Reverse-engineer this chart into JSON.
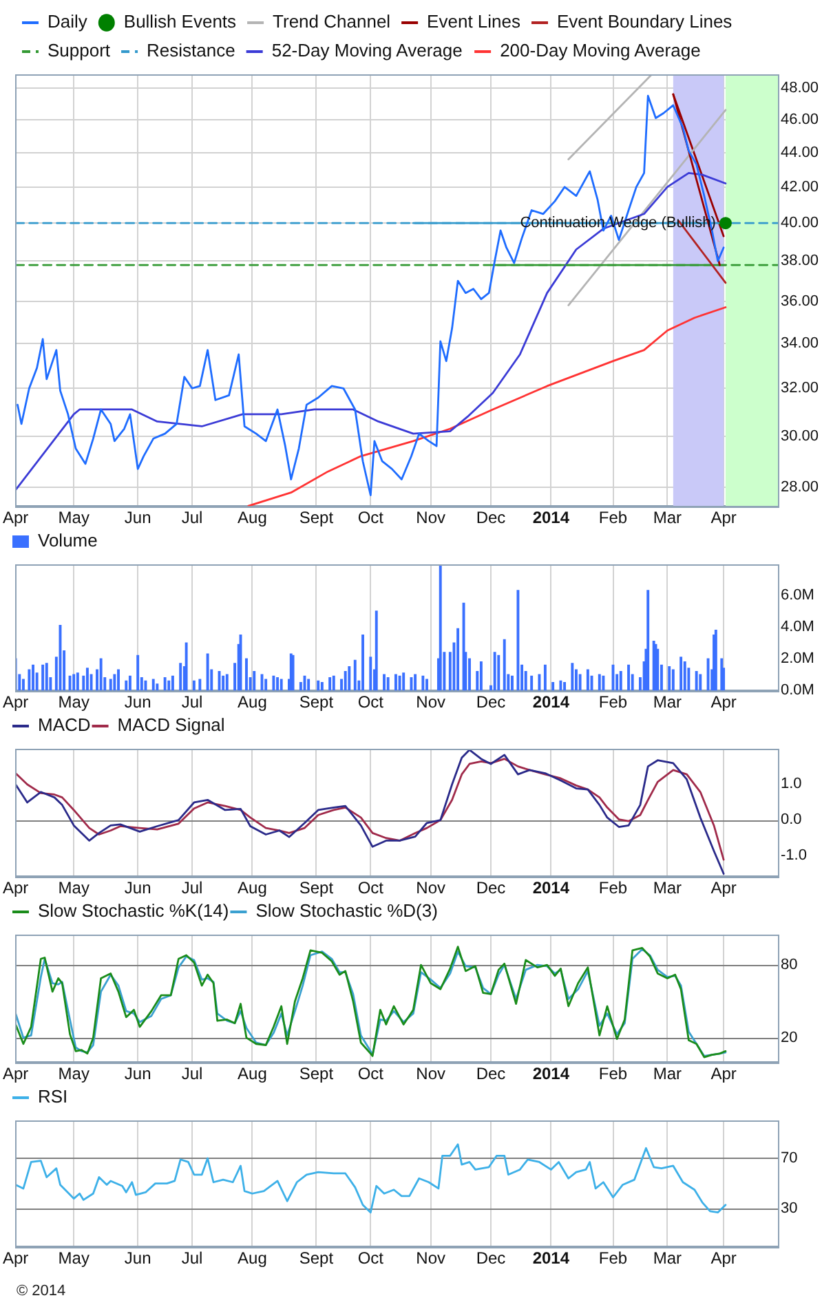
{
  "chart_data": [
    {
      "type": "line",
      "log": "y",
      "grid": true,
      "legend": "top left",
      "xlim": [
        "2013-04-01",
        "2014-04-29"
      ],
      "xticks": [
        {
          "value": "2013-04-01",
          "label": "Apr"
        },
        {
          "value": "2013-05-01",
          "label": "May"
        },
        {
          "value": "2013-06-03",
          "label": "Jun"
        },
        {
          "value": "2013-07-01",
          "label": "Jul"
        },
        {
          "value": "2013-08-01",
          "label": "Aug"
        },
        {
          "value": "2013-09-03",
          "label": "Sept"
        },
        {
          "value": "2013-10-01",
          "label": "Oct"
        },
        {
          "value": "2013-11-01",
          "label": "Nov"
        },
        {
          "value": "2013-12-02",
          "label": "Dec"
        },
        {
          "value": "2014-01-02",
          "label": "2014"
        },
        {
          "value": "2014-02-03",
          "label": "Feb"
        },
        {
          "value": "2014-03-03",
          "label": "Mar"
        },
        {
          "value": "2014-04-01",
          "label": "Apr"
        }
      ],
      "ylim": [
        27.3,
        48.9
      ],
      "yticks": [
        {
          "value": 28,
          "label": "28.00"
        },
        {
          "value": 30,
          "label": "30.00"
        },
        {
          "value": 32,
          "label": "32.00"
        },
        {
          "value": 34,
          "label": "34.00"
        },
        {
          "value": 36,
          "label": "36.00"
        },
        {
          "value": 38,
          "label": "38.00"
        },
        {
          "value": 40,
          "label": "40.00"
        },
        {
          "value": 42,
          "label": "42.00"
        },
        {
          "value": 44,
          "label": "44.00"
        },
        {
          "value": 46,
          "label": "46.00"
        },
        {
          "value": 48,
          "label": "48.00"
        }
      ],
      "bands": [
        {
          "axis": "x",
          "from": "2014-03-06",
          "to": "2014-04-01",
          "color": "#c9c9f8"
        },
        {
          "axis": "x",
          "from": "2014-04-02",
          "to": "2014-04-29",
          "color": "#ccffcc"
        }
      ],
      "annotations": [
        {
          "text": "Continuation Wedge (Bullish)",
          "x": "2014-04-02",
          "y": 40.0
        }
      ],
      "series": [
        {
          "name": "Daily",
          "color": "#1e6cff",
          "x": [
            "2013-04-02",
            "2013-04-04",
            "2013-04-08",
            "2013-04-12",
            "2013-04-15",
            "2013-04-17",
            "2013-04-22",
            "2013-04-24",
            "2013-04-28",
            "2013-05-02",
            "2013-05-07",
            "2013-05-11",
            "2013-05-15",
            "2013-05-20",
            "2013-05-22",
            "2013-05-27",
            "2013-05-30",
            "2013-06-03",
            "2013-06-06",
            "2013-06-11",
            "2013-06-17",
            "2013-06-23",
            "2013-06-27",
            "2013-07-01",
            "2013-07-05",
            "2013-07-09",
            "2013-07-13",
            "2013-07-20",
            "2013-07-25",
            "2013-07-28",
            "2013-08-03",
            "2013-08-08",
            "2013-08-14",
            "2013-08-18",
            "2013-08-21",
            "2013-08-25",
            "2013-08-29",
            "2013-09-04",
            "2013-09-11",
            "2013-09-17",
            "2013-09-23",
            "2013-09-27",
            "2013-10-01",
            "2013-10-03",
            "2013-10-07",
            "2013-10-12",
            "2013-10-17",
            "2013-10-22",
            "2013-10-26",
            "2013-10-31",
            "2013-11-04",
            "2013-11-06",
            "2013-11-09",
            "2013-11-12",
            "2013-11-15",
            "2013-11-19",
            "2013-11-23",
            "2013-11-27",
            "2013-12-01",
            "2013-12-04",
            "2013-12-07",
            "2013-12-10",
            "2013-12-14",
            "2013-12-18",
            "2013-12-23",
            "2013-12-29",
            "2014-01-04",
            "2014-01-09",
            "2014-01-15",
            "2014-01-22",
            "2014-01-26",
            "2014-01-29",
            "2014-02-02",
            "2014-02-06",
            "2014-02-11",
            "2014-02-15",
            "2014-02-19",
            "2014-02-21",
            "2014-02-25",
            "2014-03-01",
            "2014-03-06",
            "2014-03-11",
            "2014-03-14",
            "2014-03-18",
            "2014-03-22",
            "2014-03-26",
            "2014-03-29",
            "2014-04-01"
          ],
          "values": [
            31.3,
            30.5,
            32.0,
            32.9,
            34.2,
            32.4,
            33.7,
            31.9,
            30.9,
            29.5,
            28.9,
            29.9,
            31.1,
            30.5,
            29.8,
            30.3,
            30.9,
            28.7,
            29.2,
            29.9,
            30.1,
            30.5,
            32.5,
            32.0,
            32.1,
            33.7,
            31.5,
            31.7,
            33.5,
            30.4,
            30.1,
            29.8,
            31.1,
            29.6,
            28.3,
            29.5,
            31.3,
            31.6,
            32.1,
            32.0,
            31.1,
            29.0,
            27.7,
            29.8,
            29.0,
            28.7,
            28.3,
            29.2,
            30.1,
            29.8,
            29.6,
            34.1,
            33.2,
            34.7,
            37.0,
            36.4,
            36.6,
            36.1,
            36.4,
            38.0,
            39.6,
            38.7,
            37.9,
            39.2,
            40.7,
            40.5,
            41.2,
            42.0,
            41.5,
            42.9,
            41.3,
            39.6,
            40.4,
            39.1,
            40.7,
            42.0,
            42.8,
            47.5,
            46.1,
            46.4,
            46.9,
            45.5,
            44.1,
            43.3,
            41.5,
            39.6,
            38.0,
            38.7
          ]
        },
        {
          "name": "Bullish Events",
          "type": "scatter",
          "marker": "circle",
          "color": "#008000",
          "x": [
            "2014-04-02"
          ],
          "values": [
            40.0
          ]
        },
        {
          "name": "Trend Channel",
          "color": "#b4b4b4",
          "x": [
            "2014-01-11",
            "2014-02-23"
          ],
          "values": [
            43.6,
            48.9
          ]
        },
        {
          "name": "Event Lines",
          "color": "#990000",
          "x": [
            "2014-03-06",
            "2014-03-30"
          ],
          "values": [
            47.6,
            37.8
          ]
        },
        {
          "name": "Event Boundary Lines",
          "color": "#b22222",
          "x": [
            "2014-03-09",
            "2014-04-02"
          ],
          "values": [
            40.1,
            36.9
          ]
        },
        {
          "name": "Support",
          "color": "#339933",
          "line_style": "dashed",
          "x": [
            "2013-04-01",
            "2014-04-29"
          ],
          "values": [
            37.8,
            37.8
          ]
        },
        {
          "name": "Resistance",
          "color": "#3399cc",
          "line_style": "dashed",
          "x": [
            "2013-04-01",
            "2014-04-29"
          ],
          "values": [
            40.0,
            40.0
          ]
        },
        {
          "name": "52-Day Moving Average",
          "color": "#3b3bd6",
          "x": [
            "2013-04-01",
            "2013-05-01",
            "2013-05-04",
            "2013-05-31",
            "2013-06-13",
            "2013-07-06",
            "2013-07-27",
            "2013-08-16",
            "2013-09-02",
            "2013-09-22",
            "2013-10-05",
            "2013-10-23",
            "2013-11-11",
            "2013-11-20",
            "2013-12-03",
            "2013-12-17",
            "2013-12-31",
            "2014-01-15",
            "2014-01-29",
            "2014-02-19",
            "2014-03-03",
            "2014-03-14",
            "2014-03-21",
            "2014-04-02"
          ],
          "values": [
            27.9,
            30.9,
            31.1,
            31.1,
            30.6,
            30.4,
            30.9,
            30.9,
            31.1,
            31.1,
            30.6,
            30.1,
            30.2,
            30.8,
            31.8,
            33.5,
            36.4,
            38.6,
            39.7,
            40.5,
            42.0,
            42.8,
            42.7,
            42.2
          ]
        },
        {
          "name": "200-Day Moving Average",
          "color": "#ff3333",
          "x": [
            "2013-07-30",
            "2013-08-21",
            "2013-09-09",
            "2013-09-26",
            "2013-10-23",
            "2013-11-11",
            "2013-12-03",
            "2013-12-31",
            "2014-02-03",
            "2014-02-19",
            "2014-03-03",
            "2014-03-17",
            "2014-04-02"
          ],
          "values": [
            27.3,
            27.8,
            28.6,
            29.2,
            29.8,
            30.3,
            31.1,
            32.1,
            33.2,
            33.7,
            34.6,
            35.2,
            35.7
          ]
        },
        {
          "color": "#b4b4b4",
          "x": [
            "2014-01-11",
            "2014-04-02"
          ],
          "values": [
            35.8,
            46.6
          ]
        },
        {
          "color": "#990000",
          "x": [
            "2014-03-06",
            "2014-04-01"
          ],
          "values": [
            47.6,
            39.3
          ]
        },
        {
          "color": "#339933",
          "x": [
            "2013-12-03",
            "2014-04-02"
          ],
          "values": [
            37.8,
            37.8
          ]
        },
        {
          "color": "#3399cc",
          "x": [
            "2013-10-23",
            "2014-04-02"
          ],
          "values": [
            40.0,
            40.0
          ]
        }
      ]
    },
    {
      "type": "bar",
      "grid": "x",
      "legend": "top left",
      "xlim": [
        "2013-04-01",
        "2014-04-29"
      ],
      "xticks": [
        {
          "value": "2013-04-01",
          "label": "Apr"
        },
        {
          "value": "2013-05-01",
          "label": "May"
        },
        {
          "value": "2013-06-03",
          "label": "Jun"
        },
        {
          "value": "2013-07-01",
          "label": "Jul"
        },
        {
          "value": "2013-08-01",
          "label": "Aug"
        },
        {
          "value": "2013-09-03",
          "label": "Sept"
        },
        {
          "value": "2013-10-01",
          "label": "Oct"
        },
        {
          "value": "2013-11-01",
          "label": "Nov"
        },
        {
          "value": "2013-12-02",
          "label": "Dec"
        },
        {
          "value": "2014-01-02",
          "label": "2014"
        },
        {
          "value": "2014-02-03",
          "label": "Feb"
        },
        {
          "value": "2014-03-03",
          "label": "Mar"
        },
        {
          "value": "2014-04-01",
          "label": "Apr"
        }
      ],
      "ylim": [
        0,
        7.95
      ],
      "yticks": [
        {
          "value": 0,
          "label": "0.0M"
        },
        {
          "value": 2,
          "label": "2.0M"
        },
        {
          "value": 4,
          "label": "4.0M"
        },
        {
          "value": 6,
          "label": "6.0M"
        }
      ],
      "x": [
        "2013-04-01",
        "2013-04-03",
        "2013-04-05",
        "2013-04-08",
        "2013-04-10",
        "2013-04-12",
        "2013-04-15",
        "2013-04-17",
        "2013-04-19",
        "2013-04-22",
        "2013-04-24",
        "2013-04-26",
        "2013-04-29",
        "2013-05-01",
        "2013-05-03",
        "2013-05-06",
        "2013-05-08",
        "2013-05-10",
        "2013-05-13",
        "2013-05-15",
        "2013-05-17",
        "2013-05-20",
        "2013-05-22",
        "2013-05-24",
        "2013-05-28",
        "2013-05-30",
        "2013-06-03",
        "2013-06-05",
        "2013-06-07",
        "2013-06-11",
        "2013-06-13",
        "2013-06-17",
        "2013-06-19",
        "2013-06-21",
        "2013-06-25",
        "2013-06-27",
        "2013-06-28",
        "2013-07-02",
        "2013-07-05",
        "2013-07-09",
        "2013-07-11",
        "2013-07-15",
        "2013-07-17",
        "2013-07-19",
        "2013-07-23",
        "2013-07-25",
        "2013-07-26",
        "2013-07-29",
        "2013-07-31",
        "2013-08-02",
        "2013-08-06",
        "2013-08-08",
        "2013-08-12",
        "2013-08-14",
        "2013-08-16",
        "2013-08-20",
        "2013-08-21",
        "2013-08-22",
        "2013-08-26",
        "2013-08-28",
        "2013-08-30",
        "2013-09-04",
        "2013-09-06",
        "2013-09-10",
        "2013-09-12",
        "2013-09-16",
        "2013-09-18",
        "2013-09-20",
        "2013-09-23",
        "2013-09-25",
        "2013-09-27",
        "2013-10-01",
        "2013-10-03",
        "2013-10-04",
        "2013-10-08",
        "2013-10-10",
        "2013-10-14",
        "2013-10-16",
        "2013-10-18",
        "2013-10-22",
        "2013-10-24",
        "2013-10-28",
        "2013-10-30",
        "2013-11-05",
        "2013-11-06",
        "2013-11-08",
        "2013-11-11",
        "2013-11-13",
        "2013-11-15",
        "2013-11-18",
        "2013-11-19",
        "2013-11-21",
        "2013-11-25",
        "2013-11-27",
        "2013-12-02",
        "2013-12-04",
        "2013-12-06",
        "2013-12-09",
        "2013-12-11",
        "2013-12-13",
        "2013-12-16",
        "2013-12-18",
        "2013-12-20",
        "2013-12-23",
        "2013-12-27",
        "2013-12-30",
        "2014-01-03",
        "2014-01-07",
        "2014-01-09",
        "2014-01-13",
        "2014-01-15",
        "2014-01-17",
        "2014-01-21",
        "2014-01-23",
        "2014-01-27",
        "2014-01-29",
        "2014-02-03",
        "2014-02-05",
        "2014-02-07",
        "2014-02-11",
        "2014-02-13",
        "2014-02-17",
        "2014-02-19",
        "2014-02-20",
        "2014-02-21",
        "2014-02-24",
        "2014-02-25",
        "2014-02-26",
        "2014-02-28",
        "2014-03-04",
        "2014-03-06",
        "2014-03-10",
        "2014-03-12",
        "2014-03-14",
        "2014-03-18",
        "2014-03-20",
        "2014-03-24",
        "2014-03-26",
        "2014-03-27",
        "2014-03-28",
        "2014-03-31",
        "2014-04-01"
      ],
      "series": [
        {
          "name": "Volume",
          "color": "#3a70ff",
          "values": [
            2.0,
            1.0,
            0.7,
            1.3,
            1.6,
            1.1,
            1.6,
            1.7,
            0.8,
            2.1,
            4.1,
            2.5,
            0.9,
            1.0,
            1.1,
            0.9,
            1.4,
            1.0,
            1.3,
            2.0,
            0.8,
            0.7,
            1.0,
            1.3,
            0.6,
            0.9,
            2.2,
            0.8,
            0.6,
            0.7,
            0.4,
            0.8,
            0.6,
            0.9,
            1.7,
            1.5,
            3.0,
            0.6,
            0.7,
            2.3,
            1.3,
            1.2,
            0.9,
            1.0,
            1.7,
            2.9,
            3.5,
            2.0,
            0.8,
            1.2,
            1.0,
            0.7,
            0.9,
            0.8,
            0.7,
            0.7,
            2.3,
            2.2,
            0.5,
            0.9,
            0.7,
            0.6,
            0.5,
            0.8,
            0.9,
            0.7,
            1.2,
            1.5,
            1.9,
            0.6,
            3.5,
            2.1,
            1.3,
            5.0,
            1.0,
            0.8,
            1.0,
            0.9,
            1.1,
            0.8,
            1.0,
            0.9,
            0.7,
            2.0,
            7.9,
            2.4,
            2.4,
            3.0,
            3.9,
            5.5,
            2.4,
            2.0,
            1.2,
            1.8,
            0.3,
            2.4,
            2.2,
            3.2,
            1.0,
            0.9,
            6.3,
            1.6,
            1.2,
            0.9,
            1.0,
            1.6,
            0.5,
            0.6,
            0.5,
            1.7,
            1.3,
            1.0,
            1.3,
            0.9,
            1.0,
            0.9,
            1.6,
            1.0,
            1.2,
            1.6,
            1.0,
            0.8,
            1.8,
            2.6,
            6.3,
            3.1,
            2.9,
            2.6,
            1.6,
            1.5,
            1.3,
            2.1,
            1.8,
            1.4,
            1.2,
            1.0,
            2.0,
            1.3,
            3.5,
            3.8,
            2.0,
            1.4
          ]
        }
      ]
    },
    {
      "type": "line",
      "grid": "x",
      "legend": "top left",
      "xlim": [
        "2013-04-01",
        "2014-04-29"
      ],
      "xticks": [
        {
          "value": "2013-04-01",
          "label": "Apr"
        },
        {
          "value": "2013-05-01",
          "label": "May"
        },
        {
          "value": "2013-06-03",
          "label": "Jun"
        },
        {
          "value": "2013-07-01",
          "label": "Jul"
        },
        {
          "value": "2013-08-01",
          "label": "Aug"
        },
        {
          "value": "2013-09-03",
          "label": "Sept"
        },
        {
          "value": "2013-10-01",
          "label": "Oct"
        },
        {
          "value": "2013-11-01",
          "label": "Nov"
        },
        {
          "value": "2013-12-02",
          "label": "Dec"
        },
        {
          "value": "2014-01-02",
          "label": "2014"
        },
        {
          "value": "2014-02-03",
          "label": "Feb"
        },
        {
          "value": "2014-03-03",
          "label": "Mar"
        },
        {
          "value": "2014-04-01",
          "label": "Apr"
        }
      ],
      "ylim": [
        -1.57,
        1.97
      ],
      "yticks": [
        {
          "value": -1,
          "label": "-1.0"
        },
        {
          "value": 0,
          "label": "0.0"
        },
        {
          "value": 1,
          "label": "1.0"
        }
      ],
      "ref_lines": [
        {
          "axis": "y",
          "value": 0,
          "color": "#7f7f7f"
        }
      ],
      "x": [
        "2013-04-01",
        "2013-04-07",
        "2013-04-14",
        "2013-04-21",
        "2013-04-25",
        "2013-05-01",
        "2013-05-09",
        "2013-05-14",
        "2013-05-20",
        "2013-05-25",
        "2013-06-04",
        "2013-06-13",
        "2013-06-24",
        "2013-07-02",
        "2013-07-09",
        "2013-07-18",
        "2013-07-26",
        "2013-07-31",
        "2013-08-08",
        "2013-08-15",
        "2013-08-20",
        "2013-08-28",
        "2013-09-04",
        "2013-09-12",
        "2013-09-18",
        "2013-09-26",
        "2013-10-02",
        "2013-10-09",
        "2013-10-16",
        "2013-10-24",
        "2013-10-30",
        "2013-11-06",
        "2013-11-12",
        "2013-11-17",
        "2013-11-21",
        "2013-11-27",
        "2013-12-02",
        "2013-12-09",
        "2013-12-16",
        "2013-12-22",
        "2013-12-30",
        "2014-01-07",
        "2014-01-15",
        "2014-01-21",
        "2014-01-27",
        "2014-01-31",
        "2014-02-06",
        "2014-02-11",
        "2014-02-17",
        "2014-02-21",
        "2014-02-26",
        "2014-03-06",
        "2014-03-13",
        "2014-03-20",
        "2014-03-27",
        "2014-04-01"
      ],
      "series": [
        {
          "name": "MACD",
          "color": "#2a2a8a",
          "values": [
            0.98,
            0.48,
            0.77,
            0.62,
            0.41,
            -0.16,
            -0.58,
            -0.37,
            -0.16,
            -0.13,
            -0.33,
            -0.18,
            -0.01,
            0.48,
            0.55,
            0.27,
            0.3,
            -0.18,
            -0.41,
            -0.3,
            -0.48,
            -0.09,
            0.27,
            0.34,
            0.38,
            -0.16,
            -0.75,
            -0.58,
            -0.58,
            -0.47,
            -0.09,
            -0.01,
            0.98,
            1.72,
            1.94,
            1.69,
            1.55,
            1.8,
            1.26,
            1.38,
            1.29,
            1.09,
            0.87,
            0.84,
            0.41,
            0.06,
            -0.2,
            -0.16,
            0.41,
            1.48,
            1.65,
            1.57,
            1.12,
            0.06,
            -0.87,
            -1.5
          ]
        },
        {
          "name": "MACD Signal",
          "color": "#a02a4a",
          "values": [
            1.29,
            0.98,
            0.74,
            0.7,
            0.62,
            0.27,
            -0.23,
            -0.41,
            -0.3,
            -0.18,
            -0.23,
            -0.27,
            -0.11,
            0.31,
            0.48,
            0.38,
            0.27,
            0.06,
            -0.23,
            -0.3,
            -0.37,
            -0.23,
            0.13,
            0.27,
            0.34,
            0.06,
            -0.37,
            -0.51,
            -0.58,
            -0.37,
            -0.23,
            -0.01,
            0.55,
            1.26,
            1.55,
            1.62,
            1.57,
            1.69,
            1.48,
            1.38,
            1.26,
            1.15,
            0.95,
            0.84,
            0.62,
            0.34,
            0.01,
            -0.04,
            0.13,
            0.55,
            1.05,
            1.38,
            1.26,
            0.77,
            -0.16,
            -1.11
          ]
        }
      ]
    },
    {
      "type": "line",
      "grid": "x",
      "legend": "top left",
      "xlim": [
        "2013-04-01",
        "2014-04-29"
      ],
      "xticks": [
        {
          "value": "2013-04-01",
          "label": "Apr"
        },
        {
          "value": "2013-05-01",
          "label": "May"
        },
        {
          "value": "2013-06-03",
          "label": "Jun"
        },
        {
          "value": "2013-07-01",
          "label": "Jul"
        },
        {
          "value": "2013-08-01",
          "label": "Aug"
        },
        {
          "value": "2013-09-03",
          "label": "Sept"
        },
        {
          "value": "2013-10-01",
          "label": "Oct"
        },
        {
          "value": "2013-11-01",
          "label": "Nov"
        },
        {
          "value": "2013-12-02",
          "label": "Dec"
        },
        {
          "value": "2014-01-02",
          "label": "2014"
        },
        {
          "value": "2014-02-03",
          "label": "Feb"
        },
        {
          "value": "2014-03-03",
          "label": "Mar"
        },
        {
          "value": "2014-04-01",
          "label": "Apr"
        }
      ],
      "ylim": [
        0,
        105
      ],
      "yticks": [
        20,
        80
      ],
      "ref_lines": [
        {
          "axis": "y",
          "value": 20,
          "color": "#7f7f7f"
        },
        {
          "axis": "y",
          "value": 80,
          "color": "#7f7f7f"
        }
      ],
      "x": [
        "2013-04-01",
        "2013-04-05",
        "2013-04-09",
        "2013-04-14",
        "2013-04-16",
        "2013-04-20",
        "2013-04-23",
        "2013-04-25",
        "2013-04-29",
        "2013-05-02",
        "2013-05-05",
        "2013-05-08",
        "2013-05-11",
        "2013-05-15",
        "2013-05-20",
        "2013-05-24",
        "2013-05-28",
        "2013-06-01",
        "2013-06-04",
        "2013-06-10",
        "2013-06-15",
        "2013-06-20",
        "2013-06-24",
        "2013-06-28",
        "2013-07-02",
        "2013-07-06",
        "2013-07-09",
        "2013-07-12",
        "2013-07-14",
        "2013-07-19",
        "2013-07-23",
        "2013-07-26",
        "2013-07-29",
        "2013-08-03",
        "2013-08-08",
        "2013-08-12",
        "2013-08-16",
        "2013-08-19",
        "2013-08-23",
        "2013-08-27",
        "2013-08-31",
        "2013-09-06",
        "2013-09-11",
        "2013-09-15",
        "2013-09-18",
        "2013-09-22",
        "2013-09-26",
        "2013-10-01",
        "2013-10-02",
        "2013-10-06",
        "2013-10-09",
        "2013-10-13",
        "2013-10-18",
        "2013-10-23",
        "2013-10-27",
        "2013-11-01",
        "2013-11-06",
        "2013-11-11",
        "2013-11-15",
        "2013-11-19",
        "2013-11-24",
        "2013-11-28",
        "2013-12-02",
        "2013-12-06",
        "2013-12-09",
        "2013-12-15",
        "2013-12-20",
        "2013-12-26",
        "2013-12-31",
        "2014-01-04",
        "2014-01-07",
        "2014-01-11",
        "2014-01-16",
        "2014-01-21",
        "2014-01-27",
        "2014-01-31",
        "2014-02-05",
        "2014-02-09",
        "2014-02-13",
        "2014-02-18",
        "2014-02-22",
        "2014-02-26",
        "2014-03-03",
        "2014-03-07",
        "2014-03-10",
        "2014-03-14",
        "2014-03-18",
        "2014-03-22",
        "2014-03-26",
        "2014-03-30",
        "2014-04-02"
      ],
      "series": [
        {
          "name": "Slow Stochastic %K(14)",
          "color": "#1a8c1a",
          "values": [
            31,
            15,
            29,
            85,
            86,
            58,
            69,
            65,
            23,
            9,
            10,
            7,
            20,
            69,
            73,
            58,
            37,
            43,
            29,
            42,
            55,
            55,
            85,
            88,
            82,
            63,
            72,
            65,
            34,
            35,
            32,
            48,
            20,
            15,
            14,
            29,
            46,
            15,
            50,
            69,
            92,
            90,
            83,
            72,
            75,
            50,
            16,
            7,
            5,
            43,
            31,
            46,
            31,
            43,
            80,
            65,
            60,
            77,
            95,
            75,
            79,
            57,
            56,
            76,
            81,
            48,
            84,
            78,
            80,
            71,
            77,
            46,
            65,
            78,
            22,
            46,
            19,
            35,
            92,
            94,
            87,
            73,
            69,
            72,
            60,
            18,
            15,
            4,
            6,
            7,
            9
          ]
        },
        {
          "name": "Slow Stochastic %D(3)",
          "color": "#3aa0d0",
          "values": [
            40,
            20,
            22,
            70,
            85,
            65,
            64,
            66,
            35,
            12,
            9,
            8,
            14,
            58,
            72,
            63,
            42,
            40,
            33,
            38,
            52,
            55,
            78,
            87,
            84,
            68,
            69,
            66,
            40,
            34,
            32,
            42,
            28,
            16,
            14,
            24,
            40,
            22,
            42,
            63,
            88,
            91,
            85,
            74,
            74,
            56,
            22,
            9,
            6,
            35,
            34,
            42,
            33,
            40,
            74,
            68,
            61,
            73,
            91,
            79,
            78,
            61,
            56,
            72,
            80,
            52,
            76,
            80,
            79,
            73,
            76,
            52,
            60,
            75,
            30,
            40,
            23,
            32,
            85,
            93,
            88,
            76,
            70,
            71,
            63,
            25,
            15,
            5,
            6,
            7,
            8
          ]
        }
      ]
    },
    {
      "type": "line",
      "grid": "x",
      "legend": "top left",
      "xlim": [
        "2013-04-01",
        "2014-04-29"
      ],
      "xticks": [
        {
          "value": "2013-04-01",
          "label": "Apr"
        },
        {
          "value": "2013-05-01",
          "label": "May"
        },
        {
          "value": "2013-06-03",
          "label": "Jun"
        },
        {
          "value": "2013-07-01",
          "label": "Jul"
        },
        {
          "value": "2013-08-01",
          "label": "Aug"
        },
        {
          "value": "2013-09-03",
          "label": "Sept"
        },
        {
          "value": "2013-10-01",
          "label": "Oct"
        },
        {
          "value": "2013-11-01",
          "label": "Nov"
        },
        {
          "value": "2013-12-02",
          "label": "Dec"
        },
        {
          "value": "2014-01-02",
          "label": "2014"
        },
        {
          "value": "2014-02-03",
          "label": "Feb"
        },
        {
          "value": "2014-03-03",
          "label": "Mar"
        },
        {
          "value": "2014-04-01",
          "label": "Apr"
        }
      ],
      "ylim": [
        0,
        100
      ],
      "yticks": [
        30,
        70
      ],
      "ref_lines": [
        {
          "axis": "y",
          "value": 30,
          "color": "#7f7f7f"
        },
        {
          "axis": "y",
          "value": 70,
          "color": "#7f7f7f"
        }
      ],
      "annotations": [
        "© 2014"
      ],
      "x": [
        "2013-04-01",
        "2013-04-05",
        "2013-04-09",
        "2013-04-14",
        "2013-04-17",
        "2013-04-22",
        "2013-04-24",
        "2013-05-01",
        "2013-05-04",
        "2013-05-06",
        "2013-05-11",
        "2013-05-14",
        "2013-05-18",
        "2013-05-20",
        "2013-05-26",
        "2013-05-28",
        "2013-05-31",
        "2013-06-02",
        "2013-06-07",
        "2013-06-12",
        "2013-06-18",
        "2013-06-22",
        "2013-06-25",
        "2013-06-29",
        "2013-07-02",
        "2013-07-06",
        "2013-07-09",
        "2013-07-12",
        "2013-07-17",
        "2013-07-22",
        "2013-07-26",
        "2013-07-28",
        "2013-08-01",
        "2013-08-07",
        "2013-08-14",
        "2013-08-19",
        "2013-08-24",
        "2013-08-29",
        "2013-09-04",
        "2013-09-12",
        "2013-09-18",
        "2013-09-23",
        "2013-09-27",
        "2013-10-01",
        "2013-10-04",
        "2013-10-08",
        "2013-10-13",
        "2013-10-17",
        "2013-10-21",
        "2013-10-26",
        "2013-10-31",
        "2013-11-05",
        "2013-11-07",
        "2013-11-11",
        "2013-11-15",
        "2013-11-17",
        "2013-11-21",
        "2013-11-24",
        "2013-12-01",
        "2013-12-05",
        "2013-12-09",
        "2013-12-11",
        "2013-12-17",
        "2013-12-21",
        "2013-12-27",
        "2014-01-02",
        "2014-01-06",
        "2014-01-11",
        "2014-01-15",
        "2014-01-20",
        "2014-01-22",
        "2014-01-25",
        "2014-01-29",
        "2014-02-03",
        "2014-02-08",
        "2014-02-14",
        "2014-02-20",
        "2014-02-24",
        "2014-02-28",
        "2014-03-06",
        "2014-03-11",
        "2014-03-17",
        "2014-03-21",
        "2014-03-25",
        "2014-03-29",
        "2014-04-02"
      ],
      "series": [
        {
          "name": "RSI",
          "color": "#3db0e8",
          "values": [
            49,
            46,
            67,
            68,
            55,
            62,
            49,
            38,
            42,
            37,
            42,
            55,
            49,
            52,
            48,
            43,
            51,
            41,
            43,
            50,
            50,
            52,
            69,
            67,
            57,
            57,
            70,
            51,
            53,
            51,
            64,
            44,
            42,
            44,
            52,
            36,
            51,
            57,
            59,
            58,
            58,
            47,
            33,
            27,
            48,
            42,
            45,
            40,
            40,
            54,
            51,
            46,
            72,
            72,
            81,
            65,
            67,
            61,
            63,
            72,
            72,
            57,
            61,
            69,
            67,
            61,
            67,
            54,
            59,
            61,
            67,
            46,
            51,
            39,
            49,
            53,
            78,
            63,
            62,
            64,
            51,
            45,
            35,
            28,
            27,
            33
          ]
        }
      ]
    }
  ]
}
